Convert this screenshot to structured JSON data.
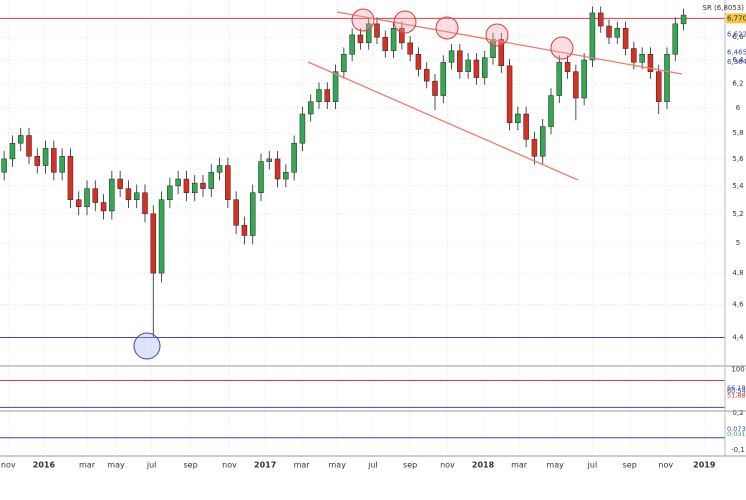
{
  "chart_data": {
    "type": "candlestick",
    "indicator_label": "SR (6,8053)",
    "x": [
      1,
      3,
      5,
      7,
      9,
      11,
      13,
      15,
      17,
      19,
      21,
      23,
      25,
      27,
      29,
      31,
      33,
      35,
      37,
      39,
      41,
      43,
      45,
      47,
      49,
      51,
      53,
      55,
      57,
      59,
      61,
      63,
      65,
      67,
      69,
      71,
      73,
      75,
      77,
      79,
      81,
      83,
      85,
      87,
      89,
      91,
      93,
      95,
      97,
      99,
      101,
      103,
      105,
      107,
      109,
      111,
      113,
      115,
      117,
      119,
      121,
      123,
      125,
      127,
      129,
      131,
      133,
      135,
      137,
      139,
      141,
      143,
      145,
      147,
      149,
      151,
      153,
      155,
      157,
      159,
      161,
      163,
      165
    ],
    "open": [
      5.5,
      5.6,
      5.72,
      5.78,
      5.62,
      5.55,
      5.68,
      5.5,
      5.62,
      5.3,
      5.25,
      5.38,
      5.28,
      5.22,
      5.45,
      5.38,
      5.3,
      5.35,
      5.2,
      4.8,
      5.3,
      5.4,
      5.45,
      5.35,
      5.42,
      5.38,
      5.5,
      5.55,
      5.3,
      5.12,
      5.05,
      5.35,
      5.58,
      5.6,
      5.45,
      5.5,
      5.72,
      5.95,
      6.05,
      6.15,
      6.05,
      6.3,
      6.45,
      6.62,
      6.55,
      6.72,
      6.6,
      6.48,
      6.68,
      6.55,
      6.45,
      6.32,
      6.22,
      6.1,
      6.38,
      6.48,
      6.3,
      6.4,
      6.25,
      6.42,
      6.58,
      6.35,
      5.88,
      5.95,
      5.75,
      5.62,
      5.85,
      6.1,
      6.38,
      6.3,
      6.08,
      6.4,
      6.82,
      6.7,
      6.6,
      6.68,
      6.5,
      6.38,
      6.45,
      6.3,
      6.05,
      6.45,
      6.72
    ],
    "high": [
      5.66,
      5.78,
      5.84,
      5.84,
      5.68,
      5.74,
      5.74,
      5.68,
      5.68,
      5.36,
      5.44,
      5.44,
      5.34,
      5.51,
      5.51,
      5.44,
      5.41,
      5.41,
      5.26,
      5.36,
      5.46,
      5.51,
      5.51,
      5.48,
      5.48,
      5.56,
      5.61,
      5.61,
      5.36,
      5.18,
      5.41,
      5.64,
      5.66,
      5.66,
      5.56,
      5.78,
      6.01,
      6.11,
      6.21,
      6.21,
      6.36,
      6.51,
      6.68,
      6.68,
      6.78,
      6.78,
      6.66,
      6.74,
      6.74,
      6.61,
      6.51,
      6.38,
      6.28,
      6.44,
      6.54,
      6.54,
      6.46,
      6.46,
      6.48,
      6.64,
      6.64,
      6.41,
      6.01,
      6.01,
      5.81,
      5.91,
      6.16,
      6.44,
      6.44,
      6.36,
      6.46,
      6.88,
      6.88,
      6.76,
      6.74,
      6.74,
      6.56,
      6.51,
      6.51,
      6.36,
      6.51,
      6.78,
      6.86
    ],
    "low": [
      5.44,
      5.54,
      5.66,
      5.56,
      5.49,
      5.49,
      5.44,
      5.44,
      5.24,
      5.19,
      5.19,
      5.22,
      5.16,
      5.16,
      5.32,
      5.24,
      5.24,
      5.14,
      4.4,
      4.74,
      5.24,
      5.34,
      5.29,
      5.29,
      5.32,
      5.32,
      5.44,
      5.24,
      5.06,
      4.99,
      4.99,
      5.29,
      5.52,
      5.39,
      5.39,
      5.44,
      5.66,
      5.89,
      5.99,
      5.99,
      5.99,
      6.24,
      6.39,
      6.49,
      6.49,
      6.54,
      6.42,
      6.42,
      6.49,
      6.39,
      6.26,
      6.16,
      5.98,
      6.04,
      6.32,
      6.24,
      6.24,
      6.19,
      6.19,
      6.36,
      6.29,
      5.82,
      5.82,
      5.69,
      5.56,
      5.56,
      5.79,
      6.04,
      6.24,
      5.9,
      6.02,
      6.34,
      6.64,
      6.54,
      6.54,
      6.44,
      6.32,
      6.32,
      6.24,
      5.95,
      5.99,
      6.39,
      6.66
    ],
    "close": [
      5.6,
      5.72,
      5.78,
      5.62,
      5.55,
      5.68,
      5.5,
      5.62,
      5.3,
      5.25,
      5.38,
      5.28,
      5.22,
      5.45,
      5.38,
      5.3,
      5.35,
      5.2,
      4.8,
      5.3,
      5.4,
      5.45,
      5.35,
      5.42,
      5.38,
      5.5,
      5.55,
      5.3,
      5.12,
      5.05,
      5.35,
      5.58,
      5.6,
      5.45,
      5.5,
      5.72,
      5.95,
      6.05,
      6.15,
      6.05,
      6.3,
      6.45,
      6.62,
      6.55,
      6.72,
      6.6,
      6.48,
      6.68,
      6.55,
      6.45,
      6.32,
      6.22,
      6.1,
      6.38,
      6.48,
      6.3,
      6.4,
      6.25,
      6.42,
      6.58,
      6.35,
      5.88,
      5.95,
      5.75,
      5.62,
      5.85,
      6.1,
      6.38,
      6.3,
      6.08,
      6.4,
      6.82,
      6.7,
      6.6,
      6.68,
      6.5,
      6.38,
      6.45,
      6.3,
      6.05,
      6.45,
      6.72,
      6.8
    ],
    "up_color": "#34a853",
    "down_color": "#d93025",
    "log_scale": true,
    "ylim": [
      4.24,
      6.94
    ],
    "yticks": [
      {
        "value": 6.6,
        "label": "6,6"
      },
      {
        "value": 6.4,
        "label": "6,4"
      },
      {
        "value": 6.2,
        "label": "6,2"
      },
      6,
      {
        "value": 5.8,
        "label": "5,8"
      },
      {
        "value": 5.6,
        "label": "5,6"
      },
      {
        "value": 5.4,
        "label": "5,4"
      },
      {
        "value": 5.2,
        "label": "5,2"
      },
      5,
      {
        "value": 4.8,
        "label": "4,8"
      },
      {
        "value": 4.6,
        "label": "4,6"
      },
      {
        "value": 4.4,
        "label": "4,4"
      }
    ],
    "xlim": [
      0,
      175
    ],
    "xticks": [
      {
        "value": 2,
        "label": "nov"
      },
      {
        "value": 10.6,
        "label": "2016"
      },
      {
        "value": 21,
        "label": "mar"
      },
      {
        "value": 28,
        "label": "may"
      },
      {
        "value": 36.6,
        "label": "jul"
      },
      {
        "value": 46,
        "label": "sep"
      },
      {
        "value": 55.4,
        "label": "nov"
      },
      {
        "value": 64,
        "label": "2017"
      },
      {
        "value": 72.8,
        "label": "mar"
      },
      {
        "value": 81.4,
        "label": "may"
      },
      {
        "value": 90,
        "label": "jul"
      },
      {
        "value": 99,
        "label": "sep"
      },
      {
        "value": 108,
        "label": "nov"
      },
      {
        "value": 116.6,
        "label": "2018"
      },
      {
        "value": 125.3,
        "label": "mar"
      },
      {
        "value": 134,
        "label": "may"
      },
      {
        "value": 143,
        "label": "jul"
      },
      {
        "value": 152,
        "label": "sep"
      },
      {
        "value": 160.7,
        "label": "nov"
      },
      {
        "value": 170,
        "label": "2019"
      }
    ],
    "hlines": [
      {
        "value": 6.77,
        "label": "6,770",
        "color": "#e53935"
      },
      {
        "value": 4.4,
        "color": "#3949ab"
      }
    ],
    "price_tags": [
      {
        "value": 6.622,
        "label": "6,622"
      },
      {
        "value": 6.465,
        "label": "6,465"
      },
      {
        "value": 6.384,
        "label": "6,384"
      }
    ],
    "oscillator": {
      "ylim": [
        25,
        105
      ],
      "yticks": [
        100
      ],
      "levels": [
        {
          "value": 80,
          "color": "#e53935"
        },
        {
          "value": 30,
          "color": "#3949ab"
        }
      ],
      "tags": [
        {
          "value": 66.18,
          "label": "66,18",
          "color": "#3949ab"
        },
        {
          "value": 60.54,
          "label": "60,54",
          "color": "#3949ab"
        },
        {
          "value": 51.88,
          "label": "51,88",
          "color": "#d93025"
        }
      ]
    },
    "macd": {
      "ylim": [
        -0.14,
        0.21
      ],
      "yticks": [
        {
          "value": 0.2,
          "label": "0,2"
        },
        {
          "value": -0.1,
          "label": "-0,1"
        }
      ],
      "levels": [
        {
          "value": 0,
          "color": "#3949ab"
        }
      ],
      "tags": [
        {
          "value": 0.073,
          "label": "0,073",
          "color": "#3949ab"
        },
        {
          "value": 0.031,
          "label": "0,031",
          "color": "#34a853"
        }
      ]
    }
  }
}
